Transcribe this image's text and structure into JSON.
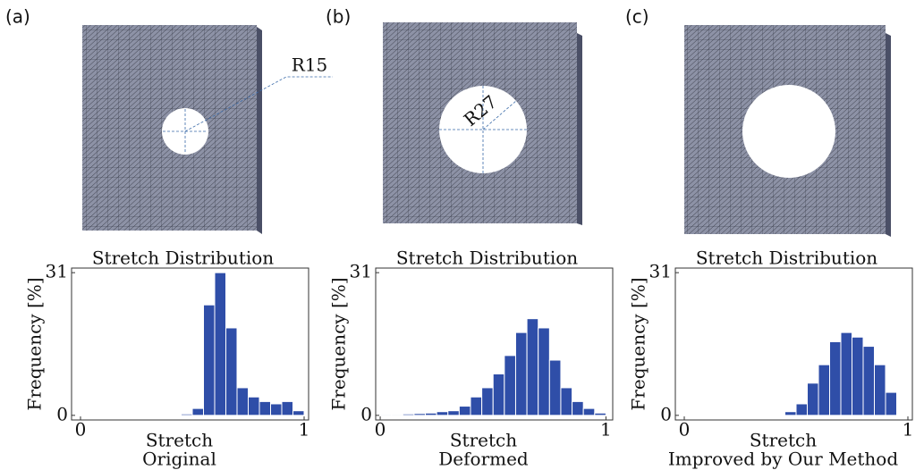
{
  "chart_data": [
    {
      "type": "histogram",
      "panel": "(a)",
      "annotation": "R15",
      "title": "Stretch Distribution",
      "xlabel": "Stretch",
      "ylabel": "Frequency [%]",
      "caption": "Original",
      "color": "#2f4ea8",
      "bins": [
        0,
        0.05,
        0.1,
        0.15,
        0.2,
        0.25,
        0.3,
        0.35,
        0.4,
        0.45,
        0.5,
        0.55,
        0.6,
        0.65,
        0.7,
        0.75,
        0.8,
        0.85,
        0.9,
        0.95,
        1
      ],
      "values": [
        0,
        0,
        0,
        0,
        0,
        0,
        0,
        0,
        0,
        0.3,
        1.5,
        24,
        31,
        19,
        6,
        4,
        3,
        2.5,
        3,
        1
      ],
      "xlim": [
        -0.04,
        1.02
      ],
      "ylim": [
        -1,
        32
      ],
      "xticks": [
        0,
        1
      ],
      "yticks": [
        0,
        31
      ]
    },
    {
      "type": "histogram",
      "panel": "(b)",
      "annotation": "R27",
      "title": "Stretch Distribution",
      "xlabel": "Stretch",
      "ylabel": "Frequency [%]",
      "caption": "Deformed",
      "color": "#2f4ea8",
      "bins": [
        0,
        0.05,
        0.1,
        0.15,
        0.2,
        0.25,
        0.3,
        0.35,
        0.4,
        0.45,
        0.5,
        0.55,
        0.6,
        0.65,
        0.7,
        0.75,
        0.8,
        0.85,
        0.9,
        0.95,
        1
      ],
      "values": [
        0.2,
        0.2,
        0.3,
        0.4,
        0.5,
        0.8,
        1,
        2,
        4,
        6,
        9,
        13,
        18,
        21,
        19,
        12,
        6,
        3,
        1.5,
        0.5
      ],
      "xlim": [
        -0.02,
        1.03
      ],
      "ylim": [
        -1,
        32
      ],
      "xticks": [
        0,
        1
      ],
      "yticks": [
        0,
        31
      ]
    },
    {
      "type": "histogram",
      "panel": "(c)",
      "title": "Stretch Distribution",
      "xlabel": "Stretch",
      "ylabel": "Frequency [%]",
      "caption": "Improved by Our Method",
      "color": "#2f4ea8",
      "bins": [
        0,
        0.05,
        0.1,
        0.15,
        0.2,
        0.25,
        0.3,
        0.35,
        0.4,
        0.45,
        0.5,
        0.55,
        0.6,
        0.65,
        0.7,
        0.75,
        0.8,
        0.85,
        0.9,
        0.95,
        1
      ],
      "values": [
        0,
        0,
        0,
        0,
        0,
        0,
        0,
        0,
        0,
        0.8,
        2.5,
        7,
        11,
        16,
        18,
        17,
        15,
        11,
        5,
        0
      ],
      "xlim": [
        -0.04,
        1.02
      ],
      "ylim": [
        -1,
        32
      ],
      "xticks": [
        0,
        1
      ],
      "yticks": [
        0,
        31
      ]
    }
  ]
}
